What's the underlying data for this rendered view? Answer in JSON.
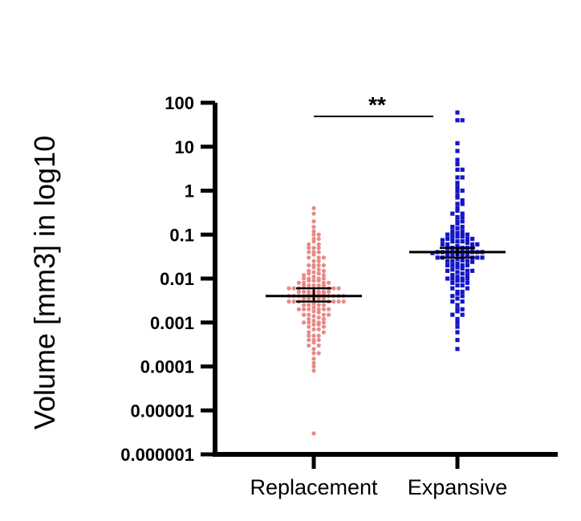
{
  "chart_data": {
    "type": "scatter",
    "ylabel": "Volume [mm3] in log10",
    "xlabel": "",
    "yscale": "log",
    "ylim": [
      1e-06,
      100
    ],
    "yticks": [
      100,
      10,
      1,
      0.1,
      0.01,
      0.001,
      0.0001,
      1e-05,
      1e-06
    ],
    "ytick_labels": [
      "100",
      "10",
      "1",
      "0.1",
      "0.01",
      "0.001",
      "0.0001",
      "0.00001",
      "0.000001"
    ],
    "categories": [
      "Replacement",
      "Expansive"
    ],
    "significance": {
      "label": "**",
      "between": [
        "Replacement",
        "Expansive"
      ]
    },
    "colors": {
      "Replacement": "#e88a86",
      "Expansive": "#1515c8",
      "axis": "#000000"
    },
    "marker_shapes": {
      "Replacement": "circle",
      "Expansive": "square"
    },
    "series": [
      {
        "category": "Replacement",
        "median": 0.004,
        "ci": [
          0.003,
          0.006
        ],
        "values": [
          0.4,
          0.3,
          0.2,
          0.15,
          0.12,
          0.1,
          0.1,
          0.08,
          0.08,
          0.07,
          0.06,
          0.06,
          0.05,
          0.05,
          0.05,
          0.04,
          0.04,
          0.04,
          0.035,
          0.03,
          0.03,
          0.03,
          0.025,
          0.025,
          0.02,
          0.02,
          0.02,
          0.02,
          0.018,
          0.016,
          0.015,
          0.015,
          0.014,
          0.013,
          0.013,
          0.012,
          0.012,
          0.011,
          0.01,
          0.01,
          0.01,
          0.01,
          0.009,
          0.009,
          0.009,
          0.008,
          0.008,
          0.008,
          0.008,
          0.007,
          0.007,
          0.007,
          0.007,
          0.007,
          0.006,
          0.006,
          0.006,
          0.006,
          0.006,
          0.006,
          0.005,
          0.005,
          0.005,
          0.005,
          0.005,
          0.005,
          0.005,
          0.0045,
          0.0045,
          0.0045,
          0.0045,
          0.004,
          0.004,
          0.004,
          0.004,
          0.004,
          0.004,
          0.004,
          0.004,
          0.0035,
          0.0035,
          0.0035,
          0.0035,
          0.0035,
          0.003,
          0.003,
          0.003,
          0.003,
          0.003,
          0.003,
          0.003,
          0.0027,
          0.0025,
          0.0025,
          0.0025,
          0.0025,
          0.0022,
          0.002,
          0.002,
          0.002,
          0.002,
          0.002,
          0.002,
          0.0018,
          0.0017,
          0.0015,
          0.0015,
          0.0015,
          0.0015,
          0.0014,
          0.0013,
          0.0012,
          0.0012,
          0.0011,
          0.001,
          0.001,
          0.001,
          0.001,
          0.0009,
          0.0009,
          0.0008,
          0.0008,
          0.0007,
          0.0007,
          0.0006,
          0.0006,
          0.0005,
          0.0005,
          0.0005,
          0.0004,
          0.0004,
          0.0004,
          0.00035,
          0.0003,
          0.0003,
          0.00025,
          0.0002,
          0.0002,
          0.00015,
          0.00012,
          0.0001,
          8e-05,
          3e-06
        ]
      },
      {
        "category": "Expansive",
        "median": 0.04,
        "ci": [
          0.03,
          0.05
        ],
        "values": [
          60,
          40,
          40,
          12,
          8,
          5,
          4,
          3,
          3,
          2,
          2,
          1.5,
          1.2,
          1,
          1,
          0.8,
          0.7,
          0.6,
          0.5,
          0.5,
          0.4,
          0.35,
          0.3,
          0.3,
          0.25,
          0.25,
          0.2,
          0.2,
          0.18,
          0.15,
          0.15,
          0.14,
          0.12,
          0.12,
          0.11,
          0.1,
          0.1,
          0.1,
          0.1,
          0.09,
          0.09,
          0.085,
          0.08,
          0.08,
          0.08,
          0.075,
          0.07,
          0.07,
          0.07,
          0.065,
          0.06,
          0.06,
          0.06,
          0.06,
          0.055,
          0.05,
          0.05,
          0.05,
          0.05,
          0.05,
          0.045,
          0.045,
          0.045,
          0.04,
          0.04,
          0.04,
          0.04,
          0.04,
          0.04,
          0.04,
          0.038,
          0.036,
          0.035,
          0.035,
          0.035,
          0.033,
          0.03,
          0.03,
          0.03,
          0.03,
          0.03,
          0.028,
          0.026,
          0.025,
          0.025,
          0.025,
          0.024,
          0.022,
          0.02,
          0.02,
          0.02,
          0.02,
          0.018,
          0.017,
          0.016,
          0.015,
          0.015,
          0.015,
          0.014,
          0.013,
          0.012,
          0.012,
          0.011,
          0.01,
          0.01,
          0.01,
          0.01,
          0.009,
          0.009,
          0.008,
          0.008,
          0.007,
          0.007,
          0.006,
          0.006,
          0.005,
          0.005,
          0.0045,
          0.004,
          0.004,
          0.0035,
          0.003,
          0.003,
          0.0025,
          0.002,
          0.002,
          0.0018,
          0.0015,
          0.0015,
          0.0012,
          0.001,
          0.0008,
          0.0006,
          0.0004,
          0.00025
        ]
      }
    ]
  }
}
